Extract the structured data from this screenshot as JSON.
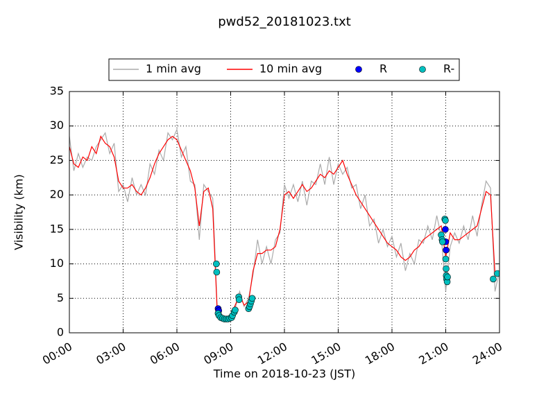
{
  "chart_data": {
    "type": "line",
    "title": "pwd52_20181023.txt",
    "xlabel": "Time on 2018-10-23 (JST)",
    "ylabel": "Visibility (km)",
    "xlim": [
      0,
      24
    ],
    "ylim": [
      0,
      35
    ],
    "xticks": [
      {
        "value": 0,
        "label": "00:00"
      },
      {
        "value": 3,
        "label": "03:00"
      },
      {
        "value": 6,
        "label": "06:00"
      },
      {
        "value": 9,
        "label": "09:00"
      },
      {
        "value": 12,
        "label": "12:00"
      },
      {
        "value": 15,
        "label": "15:00"
      },
      {
        "value": 18,
        "label": "18:00"
      },
      {
        "value": 21,
        "label": "21:00"
      },
      {
        "value": 24,
        "label": "24:00"
      }
    ],
    "yticks": [
      0,
      5,
      10,
      15,
      20,
      25,
      30,
      35
    ],
    "grid": true,
    "legend": "upper center",
    "x": [
      0,
      0.25,
      0.5,
      0.75,
      1,
      1.25,
      1.5,
      1.75,
      2,
      2.25,
      2.5,
      2.75,
      3,
      3.25,
      3.5,
      3.75,
      4,
      4.25,
      4.5,
      4.75,
      5,
      5.25,
      5.5,
      5.75,
      6,
      6.25,
      6.5,
      6.75,
      7,
      7.25,
      7.5,
      7.75,
      8,
      8.25,
      8.5,
      8.75,
      9,
      9.25,
      9.5,
      9.75,
      10,
      10.25,
      10.5,
      10.75,
      11,
      11.25,
      11.5,
      11.75,
      12,
      12.25,
      12.5,
      12.75,
      13,
      13.25,
      13.5,
      13.75,
      14,
      14.25,
      14.5,
      14.75,
      15,
      15.25,
      15.5,
      15.75,
      16,
      16.25,
      16.5,
      16.75,
      17,
      17.25,
      17.5,
      17.75,
      18,
      18.25,
      18.5,
      18.75,
      19,
      19.25,
      19.5,
      19.75,
      20,
      20.25,
      20.5,
      20.75,
      21,
      21.25,
      21.5,
      21.75,
      22,
      22.25,
      22.5,
      22.75,
      23,
      23.25,
      23.5,
      23.75,
      24
    ],
    "series": [
      {
        "name": "1 min avg",
        "color": "#aaaaaa",
        "type": "line",
        "values": [
          28.5,
          23.5,
          26,
          24,
          25.5,
          25,
          27,
          28,
          29,
          26,
          27.5,
          20.5,
          21.5,
          19,
          22.5,
          20,
          21.5,
          20,
          24.5,
          23,
          26.5,
          25,
          29,
          28,
          29.5,
          25.5,
          27,
          22,
          21.5,
          13.5,
          21.5,
          20.5,
          19.5,
          3.5,
          2.5,
          2.1,
          2.5,
          3.5,
          6,
          3.8,
          5,
          8.5,
          13.5,
          10,
          12.5,
          10,
          13.5,
          14.5,
          21.5,
          19.5,
          21.5,
          19,
          22,
          18.5,
          22,
          21.5,
          24.5,
          21.5,
          25.5,
          21.5,
          24.5,
          23,
          24,
          21,
          21.5,
          18,
          20,
          15.5,
          16.5,
          13,
          15,
          12.5,
          14,
          11,
          13,
          9,
          11.5,
          10,
          13.5,
          13,
          15.5,
          13.5,
          17,
          14,
          6,
          12.5,
          14.5,
          13,
          15.5,
          13.5,
          17,
          14,
          18.5,
          22,
          21,
          6,
          9
        ]
      },
      {
        "name": "10 min avg",
        "color": "#ff0000",
        "type": "line",
        "values": [
          27,
          24.5,
          24,
          25.5,
          25,
          27,
          26,
          28.5,
          27.5,
          27,
          25.5,
          22,
          21,
          21,
          21.5,
          20.5,
          20,
          21,
          22.5,
          24.5,
          26,
          27,
          28,
          28.5,
          28,
          26.5,
          25,
          23.5,
          21,
          15.5,
          20.5,
          21,
          18,
          3,
          2.2,
          2,
          2.3,
          4,
          5.5,
          4,
          4.5,
          9,
          11.5,
          11.5,
          12,
          12,
          12.5,
          15,
          20,
          20.5,
          19.5,
          20.5,
          21.5,
          20.5,
          21,
          22,
          23,
          22.5,
          23.5,
          23,
          24,
          25,
          23,
          21.5,
          20,
          19,
          18,
          17,
          16,
          15,
          14,
          13,
          12.5,
          12,
          11,
          10.5,
          11,
          12,
          12.5,
          13.5,
          14,
          14.5,
          15,
          15.5,
          11,
          14.5,
          13.5,
          13.5,
          14,
          14.5,
          15,
          15.5,
          18,
          20.5,
          20,
          8.5,
          8.5
        ]
      },
      {
        "name": "R",
        "color": "#0000ff",
        "type": "scatter",
        "x": [
          8.3,
          8.33,
          20.98,
          21.0,
          21.02
        ],
        "values": [
          3.5,
          3.2,
          15,
          13.2,
          12
        ]
      },
      {
        "name": "R-",
        "color": "#00bfbf",
        "type": "scatter",
        "x": [
          8.2,
          8.22,
          8.3,
          8.35,
          8.45,
          8.55,
          8.65,
          8.75,
          8.85,
          8.95,
          9.05,
          9.1,
          9.2,
          9.25,
          9.45,
          9.47,
          10.0,
          10.05,
          10.1,
          10.15,
          10.2,
          20.75,
          20.8,
          20.82,
          20.95,
          20.98,
          21.0,
          21.02,
          21.03,
          21.05,
          21.08,
          21.1,
          23.65,
          23.88
        ],
        "values": [
          10,
          8.8,
          2.8,
          2.5,
          2.2,
          2.1,
          2,
          2,
          2,
          2.1,
          2.2,
          2.5,
          3,
          3.3,
          5.2,
          4.8,
          3.5,
          3.8,
          4.2,
          4.6,
          5,
          14.2,
          13.5,
          13.2,
          16.5,
          16.3,
          10.7,
          9.3,
          8.3,
          7.8,
          7.4,
          8.1,
          7.8,
          8.6
        ]
      }
    ]
  }
}
